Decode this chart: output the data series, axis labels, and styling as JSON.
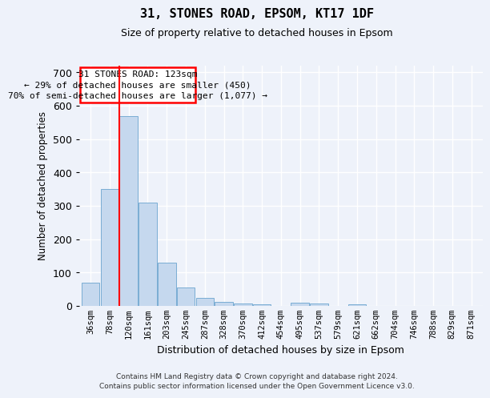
{
  "title1": "31, STONES ROAD, EPSOM, KT17 1DF",
  "title2": "Size of property relative to detached houses in Epsom",
  "xlabel": "Distribution of detached houses by size in Epsom",
  "ylabel": "Number of detached properties",
  "bar_color": "#c5d8ee",
  "bar_edge_color": "#7aadd4",
  "annotation_line_color": "red",
  "annotation_text_line1": "31 STONES ROAD: 123sqm",
  "annotation_text_line2": "← 29% of detached houses are smaller (450)",
  "annotation_text_line3": "70% of semi-detached houses are larger (1,077) →",
  "footer_line1": "Contains HM Land Registry data © Crown copyright and database right 2024.",
  "footer_line2": "Contains public sector information licensed under the Open Government Licence v3.0.",
  "categories": [
    "36sqm",
    "78sqm",
    "120sqm",
    "161sqm",
    "203sqm",
    "245sqm",
    "287sqm",
    "328sqm",
    "370sqm",
    "412sqm",
    "454sqm",
    "495sqm",
    "537sqm",
    "579sqm",
    "621sqm",
    "662sqm",
    "704sqm",
    "746sqm",
    "788sqm",
    "829sqm",
    "871sqm"
  ],
  "values": [
    70,
    350,
    570,
    310,
    130,
    55,
    25,
    12,
    7,
    5,
    0,
    10,
    7,
    0,
    5,
    0,
    0,
    0,
    0,
    0,
    0
  ],
  "ylim": [
    0,
    720
  ],
  "yticks": [
    0,
    100,
    200,
    300,
    400,
    500,
    600,
    700
  ],
  "property_bin_index": 2,
  "background_color": "#eef2fa",
  "grid_color": "#ffffff"
}
